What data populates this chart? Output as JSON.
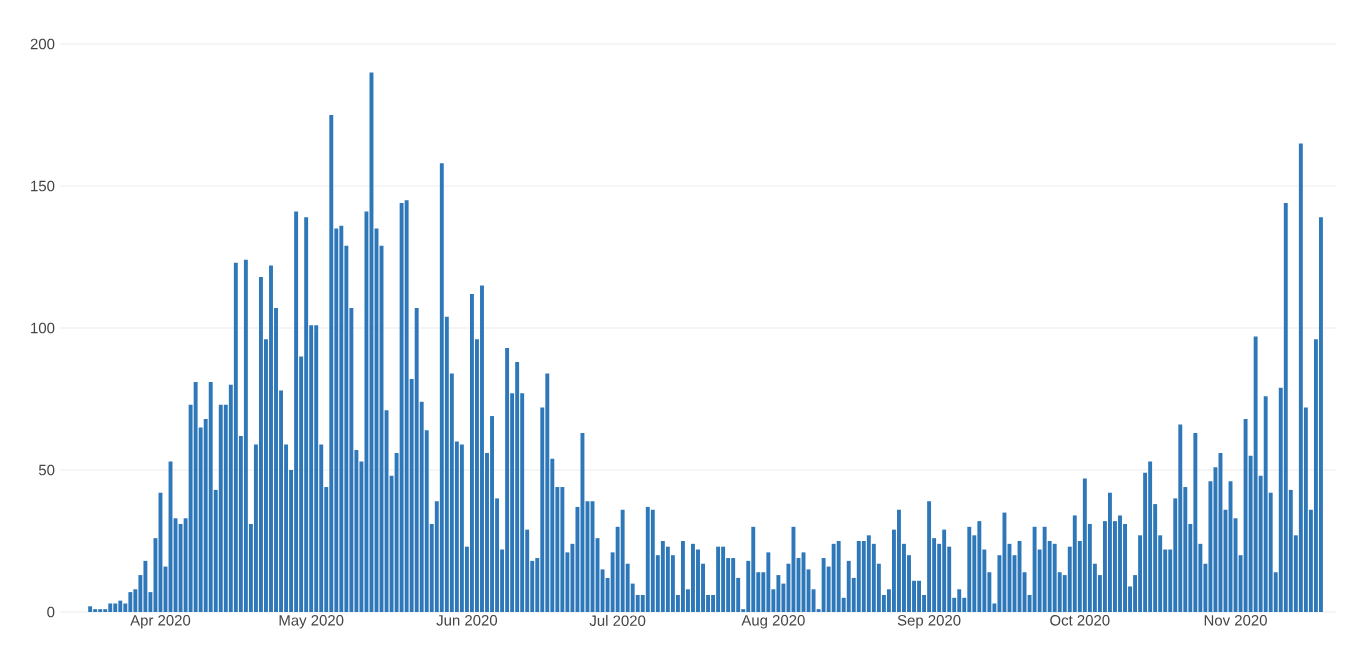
{
  "chart_data": {
    "type": "bar",
    "color": "#2e78b9",
    "grid": "y",
    "xlim": [
      "2020-03-12",
      "2020-11-21"
    ],
    "ylim": [
      0,
      200
    ],
    "xticks": [
      {
        "value": "2020-04-01",
        "label": "Apr 2020"
      },
      {
        "value": "2020-05-01",
        "label": "May 2020"
      },
      {
        "value": "2020-06-01",
        "label": "Jun 2020"
      },
      {
        "value": "2020-07-01",
        "label": "Jul 2020"
      },
      {
        "value": "2020-08-01",
        "label": "Aug 2020"
      },
      {
        "value": "2020-09-01",
        "label": "Sep 2020"
      },
      {
        "value": "2020-10-01",
        "label": "Oct 2020"
      },
      {
        "value": "2020-11-01",
        "label": "Nov 2020"
      }
    ],
    "yticks": [
      0,
      50,
      100,
      150,
      200
    ],
    "x": [
      "2020-03-18",
      "2020-03-19",
      "2020-03-20",
      "2020-03-21",
      "2020-03-22",
      "2020-03-23",
      "2020-03-24",
      "2020-03-25",
      "2020-03-26",
      "2020-03-27",
      "2020-03-28",
      "2020-03-29",
      "2020-03-30",
      "2020-03-31",
      "2020-04-01",
      "2020-04-02",
      "2020-04-03",
      "2020-04-04",
      "2020-04-05",
      "2020-04-06",
      "2020-04-07",
      "2020-04-08",
      "2020-04-09",
      "2020-04-10",
      "2020-04-11",
      "2020-04-12",
      "2020-04-13",
      "2020-04-14",
      "2020-04-15",
      "2020-04-16",
      "2020-04-17",
      "2020-04-18",
      "2020-04-19",
      "2020-04-20",
      "2020-04-21",
      "2020-04-22",
      "2020-04-23",
      "2020-04-24",
      "2020-04-25",
      "2020-04-26",
      "2020-04-27",
      "2020-04-28",
      "2020-04-29",
      "2020-04-30",
      "2020-05-01",
      "2020-05-02",
      "2020-05-03",
      "2020-05-04",
      "2020-05-05",
      "2020-05-06",
      "2020-05-07",
      "2020-05-08",
      "2020-05-09",
      "2020-05-10",
      "2020-05-11",
      "2020-05-12",
      "2020-05-13",
      "2020-05-14",
      "2020-05-15",
      "2020-05-16",
      "2020-05-17",
      "2020-05-18",
      "2020-05-19",
      "2020-05-20",
      "2020-05-21",
      "2020-05-22",
      "2020-05-23",
      "2020-05-24",
      "2020-05-25",
      "2020-05-26",
      "2020-05-27",
      "2020-05-28",
      "2020-05-29",
      "2020-05-30",
      "2020-05-31",
      "2020-06-01",
      "2020-06-02",
      "2020-06-03",
      "2020-06-04",
      "2020-06-05",
      "2020-06-06",
      "2020-06-07",
      "2020-06-08",
      "2020-06-09",
      "2020-06-10",
      "2020-06-11",
      "2020-06-12",
      "2020-06-13",
      "2020-06-14",
      "2020-06-15",
      "2020-06-16",
      "2020-06-17",
      "2020-06-18",
      "2020-06-19",
      "2020-06-20",
      "2020-06-21",
      "2020-06-22",
      "2020-06-23",
      "2020-06-24",
      "2020-06-25",
      "2020-06-26",
      "2020-06-27",
      "2020-06-28",
      "2020-06-29",
      "2020-06-30",
      "2020-07-01",
      "2020-07-02",
      "2020-07-03",
      "2020-07-04",
      "2020-07-05",
      "2020-07-06",
      "2020-07-07",
      "2020-07-08",
      "2020-07-09",
      "2020-07-10",
      "2020-07-11",
      "2020-07-12",
      "2020-07-13",
      "2020-07-14",
      "2020-07-15",
      "2020-07-16",
      "2020-07-17",
      "2020-07-18",
      "2020-07-19",
      "2020-07-20",
      "2020-07-21",
      "2020-07-22",
      "2020-07-23",
      "2020-07-24",
      "2020-07-25",
      "2020-07-26",
      "2020-07-27",
      "2020-07-28",
      "2020-07-29",
      "2020-07-30",
      "2020-07-31",
      "2020-08-01",
      "2020-08-02",
      "2020-08-03",
      "2020-08-04",
      "2020-08-05",
      "2020-08-06",
      "2020-08-07",
      "2020-08-08",
      "2020-08-09",
      "2020-08-10",
      "2020-08-11",
      "2020-08-12",
      "2020-08-13",
      "2020-08-14",
      "2020-08-15",
      "2020-08-16",
      "2020-08-17",
      "2020-08-18",
      "2020-08-19",
      "2020-08-20",
      "2020-08-21",
      "2020-08-22",
      "2020-08-23",
      "2020-08-24",
      "2020-08-25",
      "2020-08-26",
      "2020-08-27",
      "2020-08-28",
      "2020-08-29",
      "2020-08-30",
      "2020-08-31",
      "2020-09-01",
      "2020-09-02",
      "2020-09-03",
      "2020-09-04",
      "2020-09-05",
      "2020-09-06",
      "2020-09-07",
      "2020-09-08",
      "2020-09-09",
      "2020-09-10",
      "2020-09-11",
      "2020-09-12",
      "2020-09-13",
      "2020-09-14",
      "2020-09-15",
      "2020-09-16",
      "2020-09-17",
      "2020-09-18",
      "2020-09-19",
      "2020-09-20",
      "2020-09-21",
      "2020-09-22",
      "2020-09-23",
      "2020-09-24",
      "2020-09-25",
      "2020-09-26",
      "2020-09-27",
      "2020-09-28",
      "2020-09-29",
      "2020-09-30",
      "2020-10-01",
      "2020-10-02",
      "2020-10-03",
      "2020-10-04",
      "2020-10-05",
      "2020-10-06",
      "2020-10-07",
      "2020-10-08",
      "2020-10-09",
      "2020-10-10",
      "2020-10-11",
      "2020-10-12",
      "2020-10-13",
      "2020-10-14",
      "2020-10-15",
      "2020-10-16",
      "2020-10-17",
      "2020-10-18",
      "2020-10-19",
      "2020-10-20",
      "2020-10-21",
      "2020-10-22",
      "2020-10-23",
      "2020-10-24",
      "2020-10-25",
      "2020-10-26",
      "2020-10-27",
      "2020-10-28",
      "2020-10-29",
      "2020-10-30",
      "2020-10-31",
      "2020-11-01",
      "2020-11-02",
      "2020-11-03",
      "2020-11-04",
      "2020-11-05",
      "2020-11-06",
      "2020-11-07",
      "2020-11-08",
      "2020-11-09",
      "2020-11-10",
      "2020-11-11",
      "2020-11-12",
      "2020-11-13",
      "2020-11-14",
      "2020-11-15",
      "2020-11-16",
      "2020-11-17",
      "2020-11-18"
    ],
    "values": [
      2,
      1,
      1,
      1,
      3,
      3,
      4,
      3,
      7,
      8,
      13,
      18,
      7,
      26,
      42,
      16,
      53,
      33,
      31,
      33,
      73,
      81,
      65,
      68,
      81,
      43,
      73,
      73,
      80,
      123,
      62,
      124,
      31,
      59,
      118,
      96,
      122,
      107,
      78,
      59,
      50,
      141,
      90,
      139,
      101,
      101,
      59,
      44,
      175,
      135,
      136,
      129,
      107,
      57,
      53,
      141,
      190,
      135,
      129,
      71,
      48,
      56,
      144,
      145,
      82,
      107,
      74,
      64,
      31,
      39,
      158,
      104,
      84,
      60,
      59,
      23,
      112,
      96,
      115,
      56,
      69,
      40,
      22,
      93,
      77,
      88,
      77,
      29,
      18,
      19,
      72,
      84,
      54,
      44,
      44,
      21,
      24,
      37,
      63,
      39,
      39,
      26,
      15,
      12,
      21,
      30,
      36,
      17,
      10,
      6,
      6,
      37,
      36,
      20,
      25,
      23,
      20,
      6,
      25,
      8,
      24,
      22,
      17,
      6,
      6,
      23,
      23,
      19,
      19,
      12,
      1,
      18,
      30,
      14,
      14,
      21,
      8,
      13,
      10,
      17,
      30,
      19,
      21,
      15,
      8,
      1,
      19,
      16,
      24,
      25,
      5,
      18,
      12,
      25,
      25,
      27,
      24,
      17,
      6,
      8,
      29,
      36,
      24,
      20,
      11,
      11,
      6,
      39,
      26,
      24,
      29,
      23,
      5,
      8,
      5,
      30,
      27,
      32,
      22,
      14,
      3,
      20,
      35,
      24,
      20,
      25,
      14,
      6,
      30,
      22,
      30,
      25,
      24,
      14,
      13,
      23,
      34,
      25,
      47,
      31,
      17,
      13,
      32,
      42,
      32,
      34,
      31,
      9,
      13,
      27,
      49,
      53,
      38,
      27,
      22,
      22,
      40,
      66,
      44,
      31,
      63,
      24,
      17,
      46,
      51,
      56,
      36,
      46,
      33,
      20,
      68,
      55,
      97,
      48,
      76,
      42,
      14,
      79,
      144,
      43,
      27,
      165,
      72,
      36,
      96,
      139
    ]
  }
}
